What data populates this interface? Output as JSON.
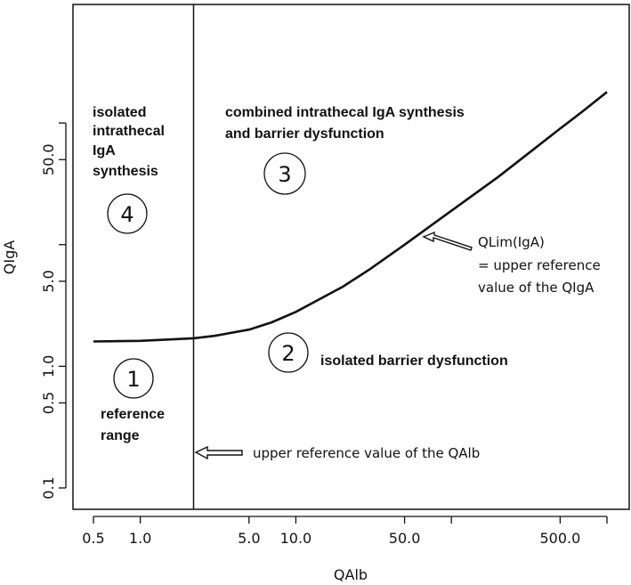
{
  "chart_data": {
    "type": "line",
    "xscale": "log",
    "yscale": "log",
    "xlabel": "QAlb",
    "ylabel": "QIgA",
    "xlim": [
      0.5,
      1000
    ],
    "ylim": [
      0.1,
      200
    ],
    "x_ticks": [
      0.5,
      1,
      5,
      10,
      50,
      100,
      500,
      1000
    ],
    "x_tick_labels": [
      "0.5",
      "1.0",
      "5.0",
      "10.0",
      "50.0",
      "",
      "500.0",
      ""
    ],
    "y_ticks": [
      0.1,
      0.5,
      1,
      5,
      10,
      50,
      100
    ],
    "y_tick_labels": [
      "0.1",
      "0.5",
      "1.0",
      "5.0",
      "",
      "50.0",
      ""
    ],
    "vertical_line_x": 2.2,
    "series": [
      {
        "x": [
          0.5,
          1.0,
          2.2,
          3.0,
          5.0,
          7.0,
          10.0,
          20.0,
          30.0,
          50.0,
          100.0,
          200.0,
          300.0,
          500.0,
          700.0,
          1000.0
        ],
        "y": [
          1.6,
          1.62,
          1.7,
          1.78,
          2.0,
          2.3,
          2.8,
          4.5,
          6.3,
          10.0,
          19.0,
          36.0,
          54.0,
          90.0,
          125.0,
          180.0
        ]
      }
    ],
    "regions": [
      {
        "id": "region-1",
        "number": "1",
        "lines": [
          "reference",
          "range"
        ]
      },
      {
        "id": "region-2",
        "number": "2",
        "lines": [
          "isolated barrier dysfunction"
        ]
      },
      {
        "id": "region-3",
        "number": "3",
        "lines": [
          "combined intrathecal IgA synthesis",
          "and barrier dysfunction"
        ]
      },
      {
        "id": "region-4",
        "number": "4",
        "lines": [
          "isolated",
          "intrathecal",
          "IgA",
          "synthesis"
        ]
      }
    ],
    "annotations": {
      "qlim": [
        "QLim(IgA)",
        "= upper reference",
        "value of the QIgA"
      ],
      "qalb": "upper reference value of the QAlb"
    },
    "grid": false,
    "legend": "none"
  }
}
